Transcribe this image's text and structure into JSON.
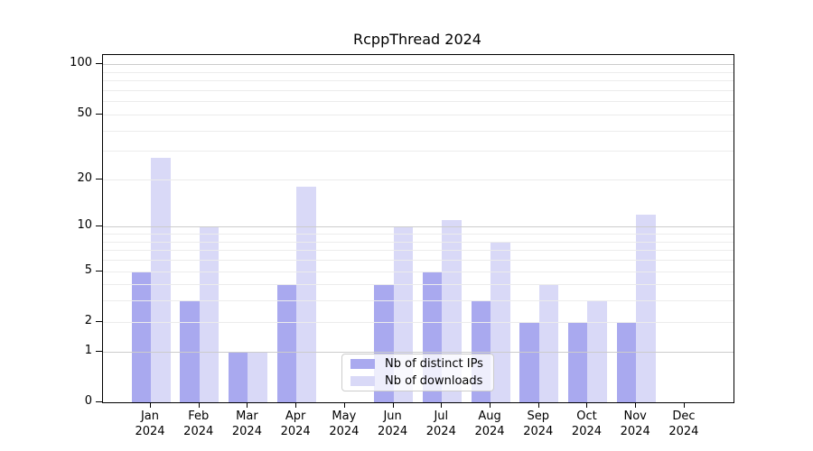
{
  "title": "RcppThread 2024",
  "chart_data": {
    "type": "bar",
    "title": "RcppThread 2024",
    "categories": [
      "Jan 2024",
      "Feb 2024",
      "Mar 2024",
      "Apr 2024",
      "May 2024",
      "Jun 2024",
      "Jul 2024",
      "Aug 2024",
      "Sep 2024",
      "Oct 2024",
      "Nov 2024",
      "Dec 2024"
    ],
    "series": [
      {
        "name": "Nb of distinct IPs",
        "color": "#a9a9ef",
        "values": [
          5,
          3,
          1,
          4,
          0,
          4,
          5,
          3,
          2,
          2,
          2,
          0
        ]
      },
      {
        "name": "Nb of downloads",
        "color": "#d9d9f7",
        "values": [
          27,
          10,
          1,
          18,
          0,
          10,
          11,
          8,
          4,
          3,
          12,
          0
        ]
      }
    ],
    "xlabel": "",
    "ylabel": "",
    "y_scale": "log1p",
    "y_tick_values": [
      0,
      1,
      2,
      5,
      10,
      20,
      50,
      100
    ],
    "y_major_gridlines": [
      1,
      10,
      100
    ],
    "y_minor_gridlines": [
      2,
      3,
      4,
      6,
      7,
      8,
      9,
      20,
      30,
      40,
      50,
      60,
      70,
      80,
      90,
      5
    ],
    "ylim": [
      0,
      113
    ],
    "grid": true,
    "legend_position": "lower center",
    "colors": {
      "major_grid": "#cccccc",
      "minor_grid": "#ececec",
      "axis": "#000000",
      "text": "#000000",
      "legend_border": "#cccccc"
    }
  }
}
